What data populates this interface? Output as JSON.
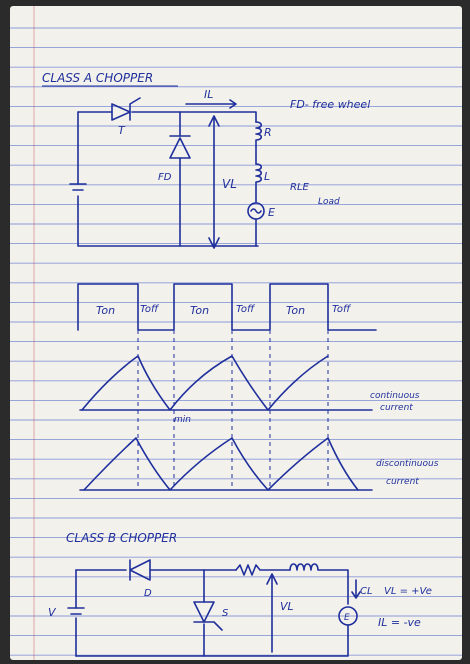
{
  "heading_a": "CLASS A CHOPPER",
  "heading_b": "CLASS B CHOPPER",
  "circuit_a": {
    "current_label": "IL",
    "thyristor_label": "T",
    "diode_label": "FD",
    "voltage_label": "VL",
    "r_label": "R",
    "l_label": "L",
    "e_label": "E",
    "note_fd": "FD- free wheel",
    "note_load_1": "RLE",
    "note_load_2": "Load"
  },
  "waveform": {
    "ton_labels": [
      "Ton",
      "Ton",
      "Ton"
    ],
    "toff_labels": [
      "Toff",
      "Toff",
      "Toff"
    ],
    "min_label": "min",
    "continuous_1": "continuous",
    "continuous_2": "current",
    "discontinuous_1": "discontinuous",
    "discontinuous_2": "current"
  },
  "circuit_b": {
    "d_label": "D",
    "s_label": "S",
    "v_label": "V",
    "vl_label": "VL",
    "cl_label": "CL",
    "e_label": "E",
    "note_1": "VL = +Ve",
    "note_2": "IL = -ve"
  },
  "colors": {
    "ink": "#1f2f9c",
    "paper": "#f3f1ec",
    "rule": "#8a9ad8",
    "margin": "#c23b3b"
  }
}
